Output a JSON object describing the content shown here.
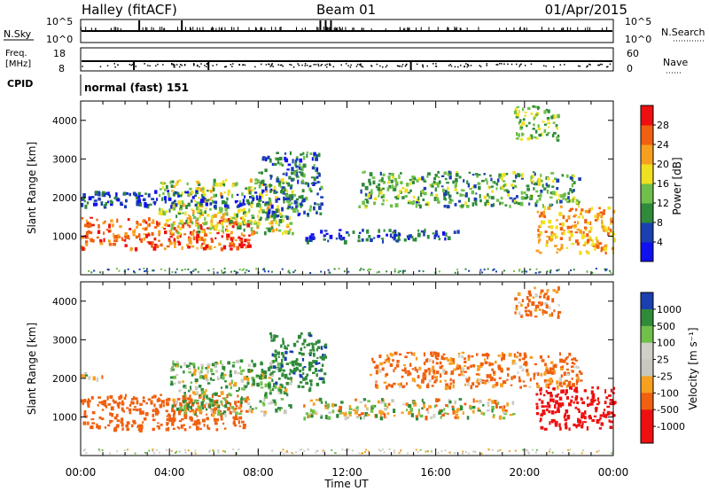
{
  "header": {
    "station": "Halley (fitACF)",
    "beam": "Beam 01",
    "date": "01/Apr/2015"
  },
  "panels": {
    "nsky": {
      "left_label": "N.Sky",
      "left_ticks": [
        "10^5",
        "10^0"
      ],
      "right_label": "N.Search",
      "right_ticks": [
        "10^5",
        "10^0"
      ]
    },
    "freq": {
      "left_label_1": "Freq.",
      "left_label_2": "[MHz]",
      "left_ticks": [
        "18",
        "8"
      ],
      "right_label": "Nave",
      "right_ticks": [
        "60",
        "0"
      ]
    },
    "cpid": {
      "label": "CPID",
      "mode": "normal (fast) 151"
    }
  },
  "colors": {
    "power": [
      "#1010f0",
      "#1a3fb0",
      "#2f8a3a",
      "#6fbf4a",
      "#f0e020",
      "#f7a020",
      "#f06010",
      "#ee1010"
    ],
    "velocity": [
      "#ee1010",
      "#f06010",
      "#f7a020",
      "#d0d0c8",
      "#c8c8c0",
      "#6fbf4a",
      "#2f8a3a",
      "#1a3fb0"
    ]
  },
  "chart_data": [
    {
      "type": "heatmap",
      "title": "Power",
      "ylabel": "Slant Range [km]",
      "xlabel": "",
      "ylim": [
        0,
        4500
      ],
      "yticks": [
        "1000",
        "2000",
        "3000",
        "4000"
      ],
      "xlim": [
        "00:00",
        "24:00"
      ],
      "colorbar": {
        "label": "Power [dB]",
        "ticks": [
          "4",
          "8",
          "12",
          "16",
          "20",
          "24",
          "28"
        ],
        "range": [
          0,
          32
        ]
      },
      "regions": [
        {
          "t": [
            0.0,
            7.8
          ],
          "r": [
            700,
            1500
          ],
          "level": 26
        },
        {
          "t": [
            3.5,
            9.5
          ],
          "r": [
            1100,
            2500
          ],
          "level": 16
        },
        {
          "t": [
            8.0,
            10.8
          ],
          "r": [
            1500,
            3200
          ],
          "level": 8
        },
        {
          "t": [
            10.0,
            17.0
          ],
          "r": [
            900,
            1200
          ],
          "level": 6
        },
        {
          "t": [
            12.5,
            22.5
          ],
          "r": [
            1800,
            2700
          ],
          "level": 12
        },
        {
          "t": [
            20.5,
            24.0
          ],
          "r": [
            600,
            1800
          ],
          "level": 22
        },
        {
          "t": [
            0.0,
            8.0
          ],
          "r": [
            1800,
            2200
          ],
          "level": 6
        },
        {
          "t": [
            19.5,
            21.5
          ],
          "r": [
            3500,
            4400
          ],
          "level": 14
        }
      ]
    },
    {
      "type": "heatmap",
      "title": "Velocity",
      "ylabel": "Slant Range [km]",
      "xlabel": "Time UT",
      "ylim": [
        0,
        4500
      ],
      "yticks": [
        "1000",
        "2000",
        "3000",
        "4000"
      ],
      "xlim": [
        "00:00",
        "24:00"
      ],
      "xticks": [
        "00:00",
        "04:00",
        "08:00",
        "12:00",
        "16:00",
        "20:00",
        "00:00"
      ],
      "colorbar": {
        "label": "Velocity [m s⁻¹]",
        "ticks": [
          "1000",
          "500",
          "100",
          "25",
          "-25",
          "-100",
          "-500",
          "-1000"
        ]
      },
      "regions": [
        {
          "t": [
            0.0,
            7.5
          ],
          "r": [
            700,
            1600
          ],
          "level": -300
        },
        {
          "t": [
            4.0,
            9.5
          ],
          "r": [
            1100,
            2500
          ],
          "level": 80
        },
        {
          "t": [
            8.5,
            11.0
          ],
          "r": [
            1700,
            3200
          ],
          "level": 400
        },
        {
          "t": [
            10.0,
            19.5
          ],
          "r": [
            1000,
            1500
          ],
          "level": 0
        },
        {
          "t": [
            13.0,
            22.5
          ],
          "r": [
            1800,
            2700
          ],
          "level": -150
        },
        {
          "t": [
            20.5,
            24.0
          ],
          "r": [
            700,
            1800
          ],
          "level": -700
        },
        {
          "t": [
            0.0,
            1.0
          ],
          "r": [
            2000,
            2200
          ],
          "level": 0
        },
        {
          "t": [
            19.5,
            21.5
          ],
          "r": [
            3600,
            4400
          ],
          "level": -150
        }
      ]
    }
  ]
}
